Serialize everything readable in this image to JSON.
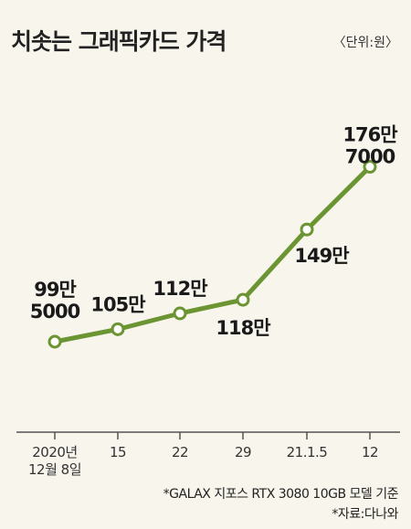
{
  "title": "치솟는 그래픽카드 가격",
  "unit": "〈단위:원〉",
  "notes": {
    "basis": "*GALAX 지포스 RTX 3080 10GB 모델 기준",
    "source": "*자료:다나와"
  },
  "colors": {
    "line": "#6b9432",
    "marker_fill": "#ffffff",
    "axis": "#555555",
    "background": "#f8f5ec"
  },
  "chart_data": {
    "type": "line",
    "title": "치솟는 그래픽카드 가격",
    "unit": "원",
    "categories": [
      "2020년 12월 8일",
      "15",
      "22",
      "29",
      "21.1.5",
      "12"
    ],
    "values": [
      995000,
      1050000,
      1120000,
      1180000,
      1490000,
      1767000
    ],
    "data_labels": [
      [
        "99만",
        "5000"
      ],
      [
        "105만"
      ],
      [
        "112만"
      ],
      [
        "118만"
      ],
      [
        "149만"
      ],
      [
        "176만",
        "7000"
      ]
    ],
    "tick_labels": [
      [
        "2020년",
        "12월 8일"
      ],
      [
        "15"
      ],
      [
        "22"
      ],
      [
        "29"
      ],
      [
        "21.1.5"
      ],
      [
        "12"
      ]
    ],
    "grid": false,
    "legend": "none"
  }
}
